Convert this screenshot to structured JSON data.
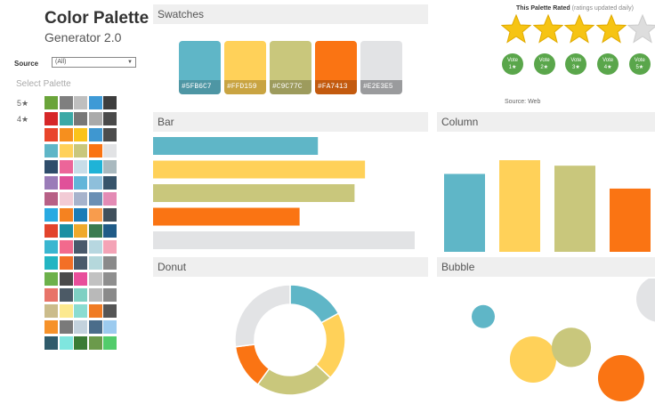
{
  "header": {
    "title": "Color Palette",
    "subtitle": "Generator 2.0"
  },
  "filter": {
    "label": "Source",
    "value": "(All)"
  },
  "sidebar": {
    "select_label": "Select Palette",
    "rating_labels": [
      "5★",
      "4★"
    ],
    "palettes": [
      [
        "#6aa43a",
        "#7f7f7f",
        "#bfbfbf",
        "#3e9ad6",
        "#3d3d3d"
      ],
      [
        "#d62728",
        "#3ba9a6",
        "#777777",
        "#aaaaaa",
        "#4a4a4a"
      ],
      [
        "#e9452b",
        "#f68f1e",
        "#fbc31a",
        "#3f97d0",
        "#4c4c4c"
      ],
      [
        "#5fb6c7",
        "#ffd159",
        "#c9c77c",
        "#fa7413",
        "#e2e3e5"
      ],
      [
        "#2f4d6b",
        "#ec6599",
        "#c8dde8",
        "#1fb3d7",
        "#a9b9bf"
      ],
      [
        "#9a7cb8",
        "#e05099",
        "#61b5d9",
        "#8ebfdb",
        "#37546b"
      ],
      [
        "#b76086",
        "#f2cbd5",
        "#a7b3cc",
        "#6b8fb4",
        "#e48bb5"
      ],
      [
        "#29aae2",
        "#f58220",
        "#1c7cb7",
        "#f89c4d",
        "#40505c"
      ],
      [
        "#e2442c",
        "#1b8fa3",
        "#efa92b",
        "#3b7b50",
        "#1f5b87"
      ],
      [
        "#39b6d0",
        "#f26a8d",
        "#49596b",
        "#b7d7e0",
        "#f4a3b6"
      ],
      [
        "#23b5c2",
        "#f36f26",
        "#4a5a6b",
        "#b5d8dc",
        "#8a8a8a"
      ],
      [
        "#6db14b",
        "#4b4b4b",
        "#e84e9b",
        "#c2c2c2",
        "#8f8f8f"
      ],
      [
        "#e87469",
        "#4c5a66",
        "#7fd0c3",
        "#b9b9b9",
        "#8a8a8a"
      ],
      [
        "#cbbc8b",
        "#fce98f",
        "#8adcd1",
        "#f07b23",
        "#555555"
      ],
      [
        "#f6922a",
        "#7a7a7a",
        "#c3d2dd",
        "#4b6d8a",
        "#9ccbef"
      ],
      [
        "#2f5b6b",
        "#7fe6df",
        "#3b7b35",
        "#6b9a4b",
        "#52cc6b"
      ]
    ]
  },
  "swatches": {
    "title": "Swatches",
    "items": [
      {
        "hex": "#5FB6C7",
        "label": "#5FB6C7",
        "dark": "#4e96a4"
      },
      {
        "hex": "#FFD159",
        "label": "#FFD159",
        "dark": "#c9a442"
      },
      {
        "hex": "#C9C77C",
        "label": "#C9C77C",
        "dark": "#9d9b5d"
      },
      {
        "hex": "#FA7413",
        "label": "#FA7413",
        "dark": "#c35a0e"
      },
      {
        "hex": "#E2E3E5",
        "label": "#E2E3E5",
        "dark": "#9a9b9d"
      }
    ]
  },
  "rating": {
    "title": "This Palette Rated",
    "note": "(ratings updated daily)",
    "stars": 4,
    "max_stars": 5,
    "votes": [
      {
        "line1": "Vote",
        "line2": "1★"
      },
      {
        "line1": "Vote",
        "line2": "2★"
      },
      {
        "line1": "Vote",
        "line2": "3★"
      },
      {
        "line1": "Vote",
        "line2": "4★"
      },
      {
        "line1": "Vote",
        "line2": "5★"
      }
    ],
    "source": "Source: Web"
  },
  "panels": {
    "bar": "Bar",
    "column": "Column",
    "donut": "Donut",
    "bubble": "Bubble"
  },
  "chart_data": [
    {
      "type": "bar",
      "name": "Bar",
      "values": [
        63,
        81,
        77,
        56,
        100
      ],
      "colors": [
        "#5FB6C7",
        "#FFD159",
        "#C9C77C",
        "#FA7413",
        "#E2E3E5"
      ]
    },
    {
      "type": "bar",
      "name": "Column",
      "values": [
        85,
        100,
        94,
        69
      ],
      "colors": [
        "#5FB6C7",
        "#FFD159",
        "#C9C77C",
        "#FA7413"
      ]
    },
    {
      "type": "pie",
      "name": "Donut",
      "values": [
        17,
        20,
        23,
        13,
        27
      ],
      "colors": [
        "#5FB6C7",
        "#FFD159",
        "#C9C77C",
        "#FA7413",
        "#E2E3E5"
      ]
    },
    {
      "type": "scatter",
      "name": "Bubble",
      "points": [
        {
          "x": 1.0,
          "y": 6.2,
          "size": 1.0,
          "color": "#5FB6C7"
        },
        {
          "x": 2.3,
          "y": 2.3,
          "size": 2.0,
          "color": "#FFD159"
        },
        {
          "x": 3.3,
          "y": 3.4,
          "size": 1.7,
          "color": "#C9C77C"
        },
        {
          "x": 4.6,
          "y": 0.6,
          "size": 2.0,
          "color": "#FA7413"
        },
        {
          "x": 5.6,
          "y": 7.8,
          "size": 2.0,
          "color": "#E2E3E5"
        }
      ]
    }
  ]
}
